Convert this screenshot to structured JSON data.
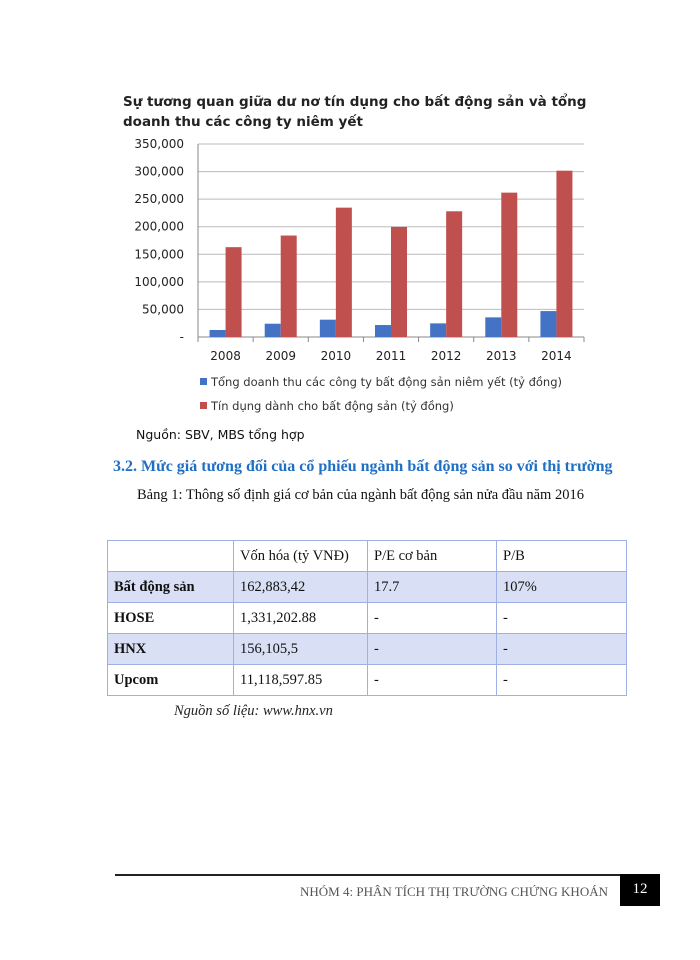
{
  "chart_data": {
    "type": "bar",
    "title": "Sự tương quan giữa dư nơ tín dụng cho bất động sản và tổng doanh thu các công ty niêm yết",
    "categories": [
      "2008",
      "2009",
      "2010",
      "2011",
      "2012",
      "2013",
      "2014"
    ],
    "series": [
      {
        "name": "Tổng doanh thu các công ty bất động sản niêm yết (tỷ đồng)",
        "color": "#4472c4",
        "values": [
          12700,
          24100,
          31400,
          21700,
          24700,
          35600,
          47000
        ]
      },
      {
        "name": "Tín dụng dành cho bất động sản (tỷ đồng)",
        "color": "#c0504d",
        "values": [
          162900,
          184000,
          234600,
          199600,
          228000,
          261800,
          301600
        ]
      }
    ],
    "ylim": [
      0,
      350000
    ],
    "yticks": [
      0,
      50000,
      100000,
      150000,
      200000,
      250000,
      300000,
      350000
    ],
    "ytick_labels": [
      "-",
      "50,000",
      "100,000",
      "150,000",
      "200,000",
      "250,000",
      "300,000",
      "350,000"
    ],
    "grid": true,
    "legend": "bottom",
    "xlabel": "",
    "ylabel": ""
  },
  "chart_source": "Nguồn: SBV, MBS tổng hợp",
  "section_heading": "3.2. Mức giá tương đối của cổ phiếu ngành bất động sản so với thị trường",
  "table_caption": "Bảng 1: Thông số định giá cơ bản của ngành bất động sản nửa đầu năm 2016",
  "table": {
    "headers": [
      "",
      "Vốn hóa (tỷ VNĐ)",
      "P/E cơ bản",
      "P/B"
    ],
    "rows": [
      [
        "Bất động sản",
        "162,883,42",
        "17.7",
        "107%"
      ],
      [
        "HOSE",
        "1,331,202.88",
        "-",
        "-"
      ],
      [
        "HNX",
        "156,105,5",
        "-",
        "-"
      ],
      [
        "Upcom",
        "11,118,597.85",
        "-",
        "-"
      ]
    ]
  },
  "table_note": "Nguồn số liệu: www.hnx.vn",
  "footer": {
    "text": "NHÓM 4: PHÂN TÍCH THỊ TRƯỜNG CHỨNG KHOÁN",
    "page_number": "12"
  }
}
